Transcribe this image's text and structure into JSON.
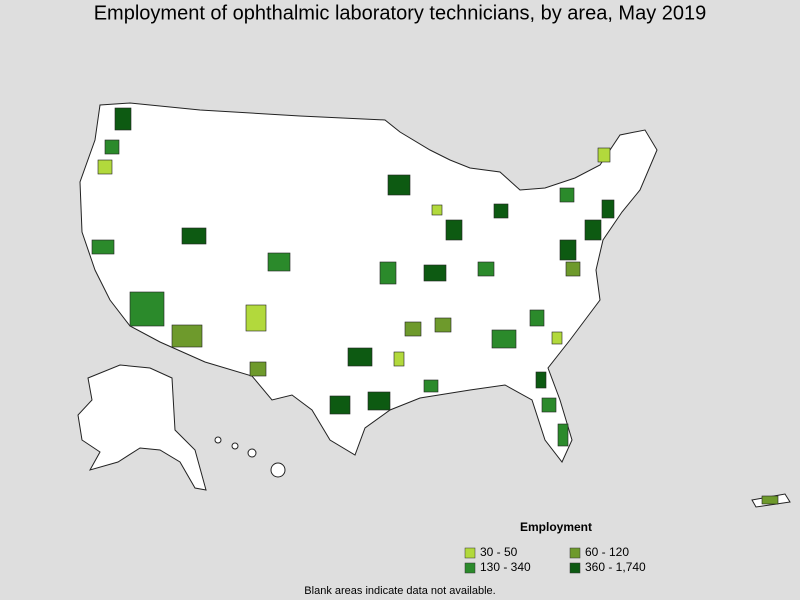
{
  "title": "Employment of ophthalmic laboratory technicians, by area, May 2019",
  "legend": {
    "title": "Employment",
    "items": [
      {
        "label": "30 - 50",
        "color": "#b2d93c"
      },
      {
        "label": "60 - 120",
        "color": "#6e9a2c"
      },
      {
        "label": "130 - 340",
        "color": "#2b8a2b"
      },
      {
        "label": "360 - 1,740",
        "color": "#0d5a12"
      }
    ]
  },
  "note": "Blank areas indicate data not available."
}
